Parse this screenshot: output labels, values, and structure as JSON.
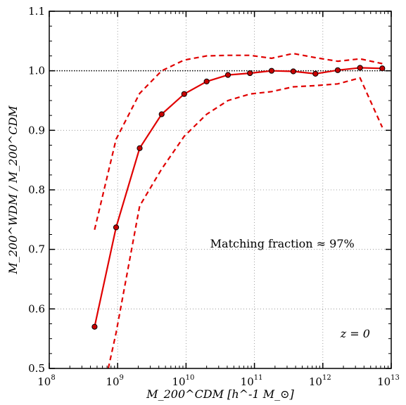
{
  "chart_data": {
    "type": "line",
    "xscale": "log",
    "xlim": [
      100000000.0,
      10000000000000.0
    ],
    "ylim": [
      0.5,
      1.1
    ],
    "xlabel": "M_200^CDM [h^-1 M_⊙]",
    "ylabel": "M_200^WDM / M_200^CDM",
    "x_ticks": [
      {
        "base": "10",
        "exp": "8",
        "value": 100000000.0
      },
      {
        "base": "10",
        "exp": "9",
        "value": 1000000000.0
      },
      {
        "base": "10",
        "exp": "10",
        "value": 10000000000.0
      },
      {
        "base": "10",
        "exp": "11",
        "value": 100000000000.0
      },
      {
        "base": "10",
        "exp": "12",
        "value": 1000000000000.0
      },
      {
        "base": "10",
        "exp": "13",
        "value": 10000000000000.0
      }
    ],
    "y_ticks": [
      "0.5",
      "0.6",
      "0.7",
      "0.8",
      "0.9",
      "1.0",
      "1.1"
    ],
    "grid": true,
    "reference_line": {
      "y": 1.0,
      "style": "dotted",
      "color": "#000000"
    },
    "series": [
      {
        "role": "median",
        "style": "solid",
        "markers": true,
        "color": "#e00000",
        "points": [
          [
            460000000.0,
            0.57
          ],
          [
            950000000.0,
            0.737
          ],
          [
            2100000000.0,
            0.87
          ],
          [
            4400000000.0,
            0.927
          ],
          [
            9400000000.0,
            0.961
          ],
          [
            20000000000.0,
            0.982
          ],
          [
            41000000000.0,
            0.993
          ],
          [
            86000000000.0,
            0.996
          ],
          [
            178000000000.0,
            1.0
          ],
          [
            370000000000.0,
            0.999
          ],
          [
            780000000000.0,
            0.995
          ],
          [
            1650000000000.0,
            1.001
          ],
          [
            3500000000000.0,
            1.005
          ],
          [
            7400000000000.0,
            1.004
          ]
        ]
      },
      {
        "role": "upper",
        "style": "dashed",
        "markers": false,
        "color": "#e00000",
        "points": [
          [
            460000000.0,
            0.733
          ],
          [
            950000000.0,
            0.885
          ],
          [
            2100000000.0,
            0.962
          ],
          [
            4400000000.0,
            1.0
          ],
          [
            9400000000.0,
            1.018
          ],
          [
            20000000000.0,
            1.025
          ],
          [
            41000000000.0,
            1.026
          ],
          [
            86000000000.0,
            1.026
          ],
          [
            178000000000.0,
            1.021
          ],
          [
            370000000000.0,
            1.029
          ],
          [
            780000000000.0,
            1.022
          ],
          [
            1650000000000.0,
            1.016
          ],
          [
            3500000000000.0,
            1.02
          ],
          [
            7400000000000.0,
            1.012
          ]
        ]
      },
      {
        "role": "lower",
        "style": "dashed",
        "markers": false,
        "color": "#e00000",
        "points": [
          [
            730000000.0,
            0.5
          ],
          [
            950000000.0,
            0.56
          ],
          [
            2100000000.0,
            0.773
          ],
          [
            4400000000.0,
            0.835
          ],
          [
            9400000000.0,
            0.89
          ],
          [
            20000000000.0,
            0.927
          ],
          [
            41000000000.0,
            0.95
          ],
          [
            86000000000.0,
            0.961
          ],
          [
            178000000000.0,
            0.965
          ],
          [
            370000000000.0,
            0.973
          ],
          [
            780000000000.0,
            0.975
          ],
          [
            1650000000000.0,
            0.978
          ],
          [
            3500000000000.0,
            0.988
          ],
          [
            7400000000000.0,
            0.905
          ]
        ]
      }
    ],
    "annotations": [
      {
        "text": "Matching fraction ≈ 97%",
        "position": "center-right"
      },
      {
        "text": "z = 0",
        "position": "lower-right"
      }
    ]
  }
}
